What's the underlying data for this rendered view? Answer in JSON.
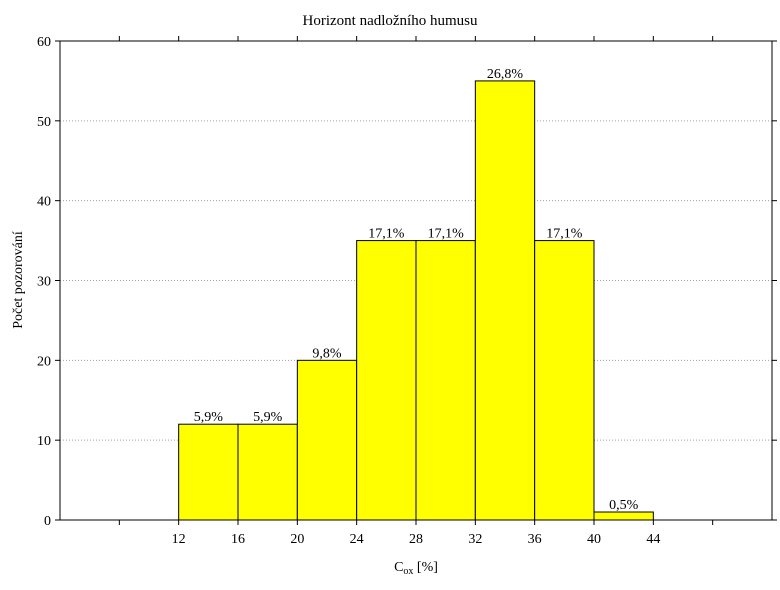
{
  "chart_data": {
    "type": "bar",
    "title": "Horizont nadložního humusu",
    "xlabel_main": "C",
    "xlabel_sub": "ox",
    "xlabel_unit": " [%]",
    "ylabel": "Počet pozorování",
    "xlim": [
      4,
      52
    ],
    "ylim": [
      0,
      60
    ],
    "y_ticks": [
      0,
      10,
      20,
      30,
      40,
      50,
      60
    ],
    "x_ticks": [
      12,
      16,
      20,
      24,
      28,
      32,
      36,
      40,
      44
    ],
    "x_tick_marks": [
      8,
      12,
      16,
      20,
      24,
      28,
      32,
      36,
      40,
      44,
      48
    ],
    "grid": "horizontal dotted",
    "colors": {
      "bar": "#ffff00",
      "edge": "#000000",
      "grid": "#a0a0a0"
    },
    "bins": [
      {
        "from": 12,
        "to": 16,
        "count": 12,
        "label": "5,9%"
      },
      {
        "from": 16,
        "to": 20,
        "count": 12,
        "label": "5,9%"
      },
      {
        "from": 20,
        "to": 24,
        "count": 20,
        "label": "9,8%"
      },
      {
        "from": 24,
        "to": 28,
        "count": 35,
        "label": "17,1%"
      },
      {
        "from": 28,
        "to": 32,
        "count": 35,
        "label": "17,1%"
      },
      {
        "from": 32,
        "to": 36,
        "count": 55,
        "label": "26,8%"
      },
      {
        "from": 36,
        "to": 40,
        "count": 35,
        "label": "17,1%"
      },
      {
        "from": 40,
        "to": 44,
        "count": 1,
        "label": "0,5%"
      }
    ]
  }
}
